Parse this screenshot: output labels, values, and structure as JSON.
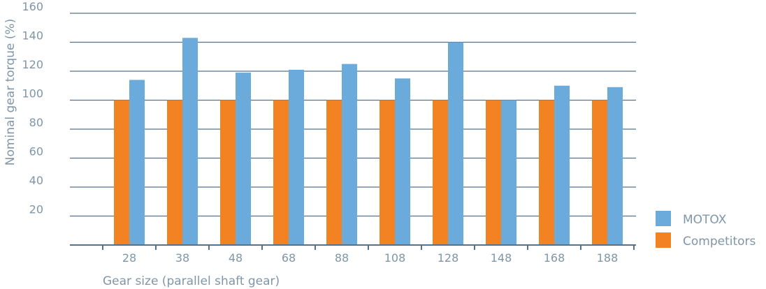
{
  "chart_data": {
    "type": "bar",
    "title": "",
    "xlabel": "Gear size (parallel shaft gear)",
    "ylabel": "Nominal gear torque (%)",
    "categories": [
      "28",
      "38",
      "48",
      "68",
      "88",
      "108",
      "128",
      "148",
      "168",
      "188"
    ],
    "y_ticks": [
      "20",
      "40",
      "60",
      "80",
      "100",
      "120",
      "140",
      "160"
    ],
    "ylim": [
      0,
      160
    ],
    "grid": true,
    "legend_position": "bottom-right",
    "series": [
      {
        "name": "Competitors",
        "color": "#f28222",
        "values": [
          100,
          100,
          100,
          100,
          100,
          100,
          100,
          100,
          100,
          100
        ]
      },
      {
        "name": "MOTOX",
        "color": "#6aabdc",
        "values": [
          114,
          143,
          119,
          121,
          125,
          115,
          140,
          100,
          110,
          109
        ]
      }
    ],
    "legend": [
      {
        "label": "MOTOX",
        "color": "#6aabdc"
      },
      {
        "label": "Competitors",
        "color": "#f28222"
      }
    ]
  }
}
